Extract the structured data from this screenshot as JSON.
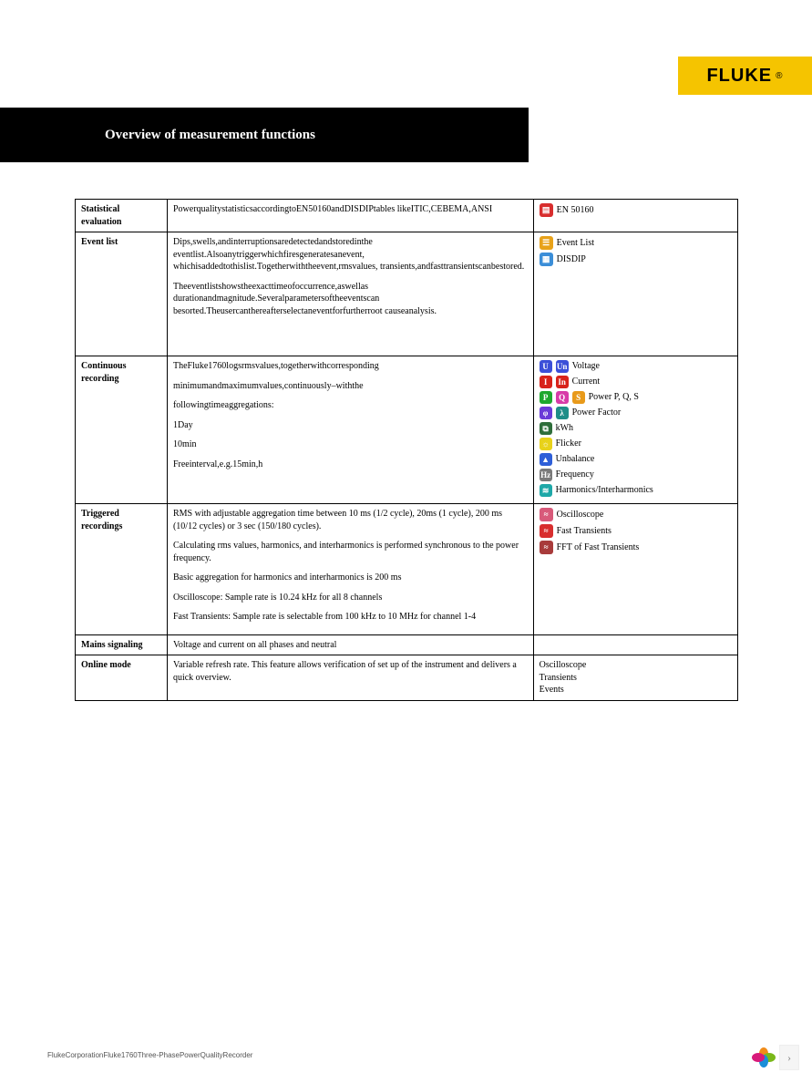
{
  "brand": {
    "name": "FLUKE",
    "reg": "®",
    "bg": "#f5c400",
    "fg": "#000000"
  },
  "title": {
    "text": "Overview of measurement functions",
    "bg": "#000000",
    "fg": "#ffffff"
  },
  "rows": {
    "stat": {
      "label": "Statistical evaluation",
      "desc": "PowerqualitystatisticsaccordingtoEN50160andDISDIPtables likeITIC,CEBEMA,ANSI",
      "items": [
        {
          "icon": "doc-red",
          "label": "EN 50160"
        }
      ]
    },
    "event": {
      "label": "Event list",
      "p1": "Dips,swells,andinterruptionsaredetectedandstoredinthe eventlist.Alsoanytriggerwhichfiresgeneratesanevent, whichisaddedtothislist.Togetherwiththeevent,rmsvalues, transients,andfasttransientscanbestored.",
      "p2": "Theeventlistshowstheexacttimeofoccurrence,aswellas durationandmagnitude.Severalparametersoftheeventscan besorted.Theusercanthereafterselectaneventforfurtherroot causeanalysis.",
      "items": [
        {
          "icon": "event-list",
          "label": "Event List"
        },
        {
          "icon": "disdip",
          "label": "DISDIP"
        }
      ]
    },
    "cont": {
      "label": "Continuous recording",
      "p1": "TheFluke1760logsrmsvalues,togetherwithcorresponding",
      "p2": "minimumandmaximumvalues,continuously–withthe",
      "p3": "followingtimeaggregations:",
      "p4": "1Day",
      "p5": "10min",
      "p6": "Freeinterval,e.g.15min,h",
      "items": [
        {
          "icons": [
            "U",
            "Un"
          ],
          "colors": [
            "#3b4fd8",
            "#3b4fd8"
          ],
          "label": "Voltage"
        },
        {
          "icons": [
            "I",
            "In"
          ],
          "colors": [
            "#d8231a",
            "#d8231a"
          ],
          "label": "Current"
        },
        {
          "icons": [
            "P",
            "Q",
            "S"
          ],
          "colors": [
            "#1ea82e",
            "#d83ba8",
            "#e89a1a"
          ],
          "label": "Power P, Q, S"
        },
        {
          "icons": [
            "φ",
            "λ"
          ],
          "colors": [
            "#6a3bd8",
            "#1e8e88"
          ],
          "label": "Power Factor"
        },
        {
          "icons": [
            "⧉"
          ],
          "colors": [
            "#2e6e3a"
          ],
          "label": "kWh"
        },
        {
          "icons": [
            "☼"
          ],
          "colors": [
            "#e8d21a"
          ],
          "label": "Flicker"
        },
        {
          "icons": [
            "▲"
          ],
          "colors": [
            "#2e5fd8"
          ],
          "label": "Unbalance"
        },
        {
          "icons": [
            "Hz"
          ],
          "colors": [
            "#7a7a7a"
          ],
          "label": "Frequency"
        },
        {
          "icons": [
            "≋"
          ],
          "colors": [
            "#1ea8a8"
          ],
          "label": "Harmonics/Interharmonics"
        }
      ]
    },
    "trig": {
      "label": "Triggered recordings",
      "p1": "RMS with adjustable aggregation time between 10 ms (1/2 cycle), 20ms (1 cycle), 200 ms (10/12 cycles) or 3 sec (150/180 cycles).",
      "p2": "Calculating rms values, harmonics, and interharmonics is performed synchronous to the power frequency.",
      "p3": "Basic aggregation for harmonics and interharmonics is 200 ms",
      "p4": "Oscilloscope: Sample rate is 10.24 kHz for all 8 channels",
      "p5": "Fast Transients: Sample rate is selectable from 100 kHz to 10 MHz for channel 1-4",
      "items": [
        {
          "icon": "osc",
          "color": "#d85a7a",
          "label": "Oscilloscope"
        },
        {
          "icon": "fast",
          "color": "#d82e2e",
          "label": "Fast Transients"
        },
        {
          "icon": "fft",
          "color": "#a83b3b",
          "label": "FFT of Fast Transients"
        }
      ]
    },
    "mains": {
      "label": "Mains signaling",
      "desc": "Voltage and current on all phases and neutral"
    },
    "online": {
      "label": "Online mode",
      "desc": "Variable refresh rate. This feature allows verification of set up of the instrument and delivers a quick overview.",
      "lines": [
        "Oscilloscope",
        "Transients",
        "Events"
      ]
    }
  },
  "footer": "FlukeCorporationFluke1760Three-PhasePowerQualityRecorder",
  "corner": {
    "petals": [
      "#f08c1a",
      "#7ab81a",
      "#1a8ed8",
      "#d81a7a"
    ]
  }
}
